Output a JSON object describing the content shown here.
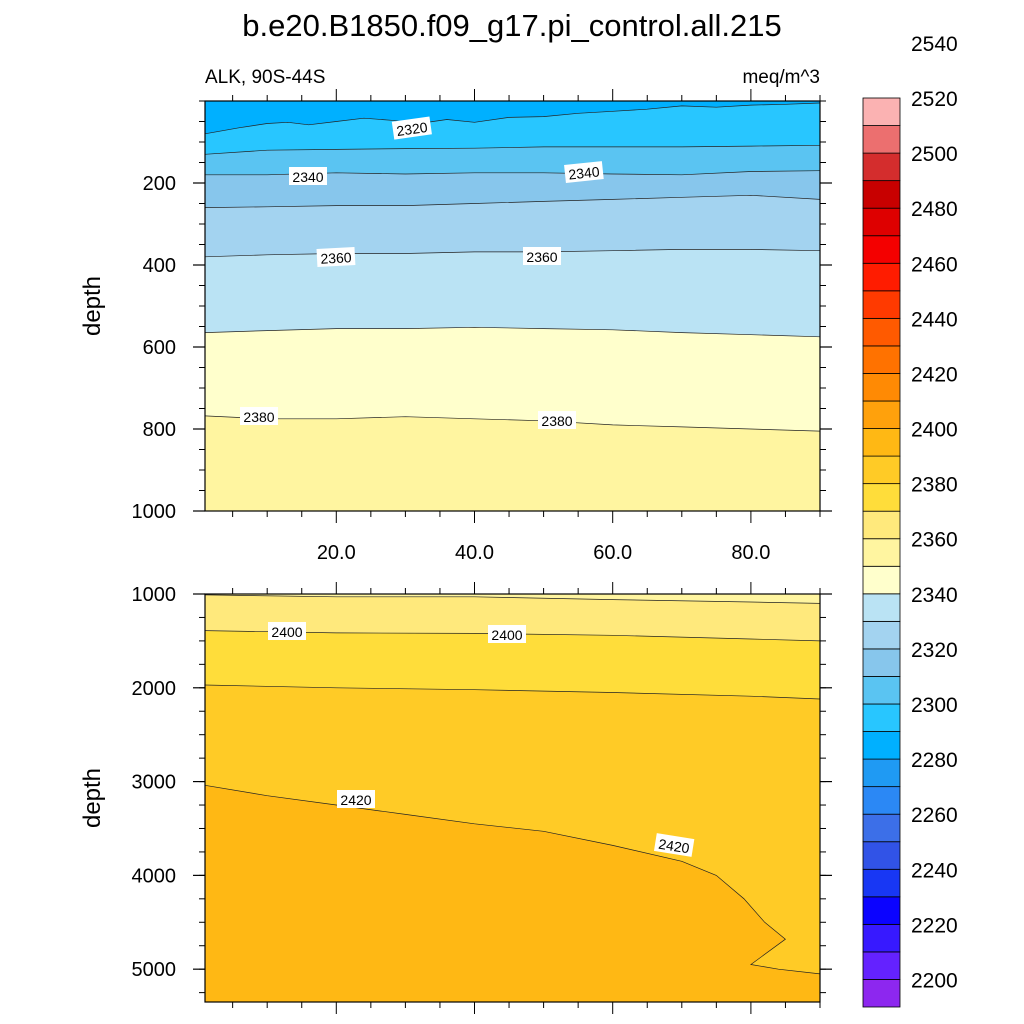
{
  "chart_data": {
    "type": "heatmap",
    "title": "b.e20.B1850.f09_g17.pi_control.all.215",
    "subtitle_left": "ALK, 90S-44S",
    "subtitle_right": "meq/m^3",
    "colorbar": {
      "min": 2190,
      "step": 10,
      "labels": [
        "2200",
        "2220",
        "2240",
        "2260",
        "2280",
        "2300",
        "2320",
        "2340",
        "2360",
        "2380",
        "2400",
        "2420",
        "2440",
        "2460",
        "2480",
        "2500",
        "2520",
        "2540"
      ],
      "colors": [
        "#8d27ef",
        "#6422ff",
        "#3719ff",
        "#0b03ff",
        "#1837f4",
        "#3153e7",
        "#3c6fe8",
        "#2b88f5",
        "#1f9af3",
        "#00b0ff",
        "#28c6ff",
        "#5ac4f2",
        "#87c6ec",
        "#a3d3f0",
        "#bae3f4",
        "#ffffcc",
        "#fff5a0",
        "#ffe97c",
        "#ffdd3a",
        "#ffcb26",
        "#ffb814",
        "#ffa10c",
        "#ff8a04",
        "#ff7200",
        "#ff5a00",
        "#ff3a00",
        "#ff1c00",
        "#f40000",
        "#de0000",
        "#c80000",
        "#d42d2d",
        "#ec6f6f",
        "#fbb2b2"
      ]
    },
    "panels": [
      {
        "ylabel": "depth",
        "yrange": [
          0,
          1000
        ],
        "xrange": [
          1,
          90
        ],
        "yticks": [
          "200",
          "400",
          "600",
          "800",
          "1000"
        ],
        "xticklabels": [
          "20.0",
          "40.0",
          "60.0",
          "80.0"
        ],
        "contour_labels": [
          "2320",
          "2340",
          "2340",
          "2360",
          "2360",
          "2380",
          "2380"
        ],
        "bands": [
          {
            "value": 2310,
            "color": "#00b0ff"
          },
          {
            "value": 2320,
            "color": "#28c6ff"
          },
          {
            "value": 2330,
            "color": "#5ac4f2"
          },
          {
            "value": 2340,
            "color": "#87c6ec"
          },
          {
            "value": 2350,
            "color": "#a3d3f0"
          },
          {
            "value": 2360,
            "color": "#bae3f4"
          },
          {
            "value": 2370,
            "color": "#ffffcc"
          },
          {
            "value": 2380,
            "color": "#fff5a0"
          }
        ],
        "contours": [
          {
            "level": 2315,
            "x": [
              1,
              6,
              10,
              13,
              16,
              20,
              24,
              28,
              32,
              36,
              40,
              45,
              50,
              55,
              60,
              65,
              70,
              75,
              80,
              85,
              90
            ],
            "y": [
              80,
              65,
              55,
              52,
              58,
              50,
              42,
              47,
              55,
              45,
              52,
              40,
              38,
              30,
              25,
              20,
              12,
              15,
              10,
              8,
              5
            ]
          },
          {
            "level": 2325,
            "x": [
              1,
              10,
              20,
              30,
              40,
              50,
              60,
              70,
              80,
              90
            ],
            "y": [
              130,
              120,
              118,
              116,
              115,
              112,
              112,
              112,
              110,
              108
            ]
          },
          {
            "level": 2335,
            "x": [
              1,
              10,
              20,
              30,
              40,
              50,
              60,
              70,
              80,
              90
            ],
            "y": [
              180,
              180,
              175,
              178,
              175,
              175,
              178,
              180,
              172,
              170
            ]
          },
          {
            "level": 2345,
            "x": [
              1,
              10,
              20,
              30,
              40,
              50,
              60,
              70,
              80,
              90
            ],
            "y": [
              260,
              258,
              255,
              255,
              250,
              245,
              240,
              235,
              230,
              240
            ]
          },
          {
            "level": 2355,
            "x": [
              1,
              10,
              20,
              30,
              40,
              50,
              60,
              70,
              80,
              90
            ],
            "y": [
              380,
              375,
              372,
              372,
              368,
              368,
              365,
              362,
              362,
              365
            ]
          },
          {
            "level": 2365,
            "x": [
              1,
              10,
              20,
              30,
              40,
              50,
              60,
              70,
              80,
              90
            ],
            "y": [
              565,
              560,
              555,
              555,
              552,
              555,
              558,
              565,
              570,
              575
            ]
          },
          {
            "level": 2375,
            "x": [
              1,
              10,
              20,
              30,
              40,
              50,
              60,
              70,
              80,
              90
            ],
            "y": [
              768,
              775,
              775,
              770,
              775,
              780,
              790,
              795,
              800,
              805
            ]
          }
        ]
      },
      {
        "ylabel": "depth",
        "yrange": [
          1000,
          5350
        ],
        "xrange": [
          1,
          90
        ],
        "yticks": [
          "1000",
          "2000",
          "3000",
          "4000",
          "5000"
        ],
        "contour_labels": [
          "2400",
          "2400",
          "2420",
          "2420"
        ],
        "bands": [
          {
            "value": 2390,
            "color": "#fff5a0"
          },
          {
            "value": 2400,
            "color": "#ffe97c"
          },
          {
            "value": 2410,
            "color": "#ffdd3a"
          },
          {
            "value": 2420,
            "color": "#ffcb26"
          },
          {
            "value": 2430,
            "color": "#ffb814"
          }
        ],
        "contours": [
          {
            "level": 2395,
            "x": [
              1,
              20,
              40,
              60,
              80,
              90
            ],
            "y": [
              1010,
              1030,
              1030,
              1060,
              1085,
              1100
            ]
          },
          {
            "level": 2405,
            "x": [
              1,
              20,
              40,
              60,
              80,
              90
            ],
            "y": [
              1390,
              1415,
              1420,
              1440,
              1480,
              1500
            ]
          },
          {
            "level": 2415,
            "x": [
              1,
              20,
              40,
              60,
              80,
              90
            ],
            "y": [
              1970,
              2000,
              2020,
              2050,
              2090,
              2120
            ]
          },
          {
            "level": 2425,
            "x": [
              1,
              10,
              20,
              30,
              40,
              50,
              60,
              70,
              75,
              79,
              82,
              85,
              80,
              84,
              90
            ],
            "y": [
              3040,
              3150,
              3250,
              3350,
              3450,
              3530,
              3680,
              3850,
              4000,
              4250,
              4500,
              4680,
              4950,
              5000,
              5050
            ]
          }
        ]
      }
    ]
  }
}
